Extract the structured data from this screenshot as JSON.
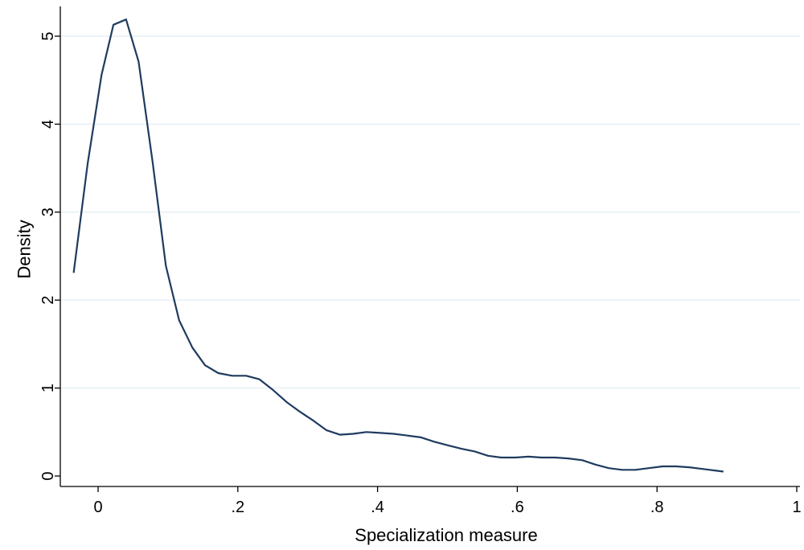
{
  "chart_data": {
    "type": "line",
    "title": "",
    "xlabel": "Specialization measure",
    "ylabel": "Density",
    "xlim": [
      -0.04,
      1.0
    ],
    "ylim": [
      0,
      5.3
    ],
    "x_ticks": [
      0,
      0.2,
      0.4,
      0.6,
      0.8,
      1.0
    ],
    "x_tick_labels": [
      "0",
      ".2",
      ".4",
      ".6",
      ".8",
      "1"
    ],
    "y_ticks": [
      0,
      1,
      2,
      3,
      4,
      5
    ],
    "y_tick_labels": [
      "0",
      "1",
      "2",
      "3",
      "4",
      "5"
    ],
    "grid": "horizontal",
    "legend": "none",
    "series": [
      {
        "color": "#1f3b5f",
        "x": [
          -0.035,
          -0.015,
          0.005,
          0.022,
          0.04,
          0.058,
          0.078,
          0.097,
          0.116,
          0.135,
          0.153,
          0.172,
          0.192,
          0.212,
          0.231,
          0.25,
          0.27,
          0.289,
          0.308,
          0.327,
          0.346,
          0.365,
          0.384,
          0.404,
          0.423,
          0.443,
          0.462,
          0.481,
          0.5,
          0.52,
          0.539,
          0.558,
          0.577,
          0.597,
          0.616,
          0.635,
          0.654,
          0.673,
          0.693,
          0.712,
          0.731,
          0.75,
          0.769,
          0.788,
          0.808,
          0.827,
          0.846,
          0.865,
          0.885,
          0.895
        ],
        "y": [
          2.31,
          3.55,
          4.56,
          5.13,
          5.19,
          4.71,
          3.57,
          2.39,
          1.77,
          1.46,
          1.26,
          1.17,
          1.14,
          1.14,
          1.1,
          0.98,
          0.84,
          0.73,
          0.63,
          0.52,
          0.47,
          0.48,
          0.5,
          0.49,
          0.48,
          0.46,
          0.44,
          0.39,
          0.35,
          0.31,
          0.28,
          0.23,
          0.21,
          0.21,
          0.22,
          0.21,
          0.21,
          0.2,
          0.18,
          0.13,
          0.09,
          0.07,
          0.07,
          0.09,
          0.11,
          0.11,
          0.1,
          0.08,
          0.06,
          0.05
        ]
      }
    ]
  }
}
